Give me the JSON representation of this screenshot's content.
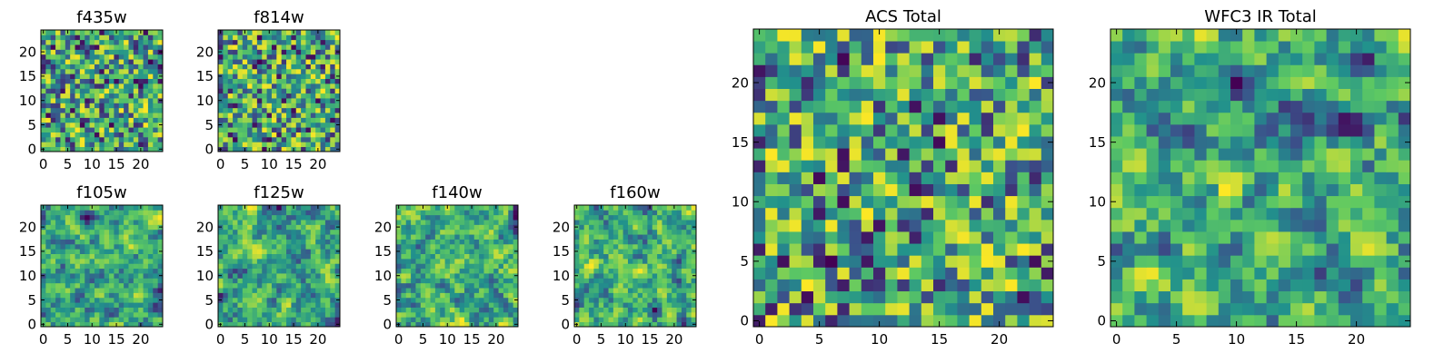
{
  "chart_data": [
    {
      "type": "heatmap",
      "title": "f435w",
      "xticks": [
        "0",
        "5",
        "10",
        "15",
        "20"
      ],
      "yticks": [
        "0",
        "5",
        "10",
        "15",
        "20"
      ],
      "xlim": [
        0,
        25
      ],
      "ylim": [
        0,
        25
      ],
      "grid": false,
      "size": 25,
      "seed": 11,
      "smooth": 0
    },
    {
      "type": "heatmap",
      "title": "f814w",
      "xticks": [
        "0",
        "5",
        "10",
        "15",
        "20"
      ],
      "yticks": [
        "0",
        "5",
        "10",
        "15",
        "20"
      ],
      "xlim": [
        0,
        25
      ],
      "ylim": [
        0,
        25
      ],
      "grid": false,
      "size": 25,
      "seed": 23,
      "smooth": 0
    },
    {
      "type": "heatmap",
      "title": "f105w",
      "xticks": [
        "0",
        "5",
        "10",
        "15",
        "20"
      ],
      "yticks": [
        "0",
        "5",
        "10",
        "15",
        "20"
      ],
      "xlim": [
        0,
        25
      ],
      "ylim": [
        0,
        25
      ],
      "grid": false,
      "size": 25,
      "seed": 37,
      "smooth": 1
    },
    {
      "type": "heatmap",
      "title": "f125w",
      "xticks": [
        "0",
        "5",
        "10",
        "15",
        "20"
      ],
      "yticks": [
        "0",
        "5",
        "10",
        "15",
        "20"
      ],
      "xlim": [
        0,
        25
      ],
      "ylim": [
        0,
        25
      ],
      "grid": false,
      "size": 25,
      "seed": 41,
      "smooth": 1
    },
    {
      "type": "heatmap",
      "title": "f140w",
      "xticks": [
        "0",
        "5",
        "10",
        "15",
        "20"
      ],
      "yticks": [
        "0",
        "5",
        "10",
        "15",
        "20"
      ],
      "xlim": [
        0,
        25
      ],
      "ylim": [
        0,
        25
      ],
      "grid": false,
      "size": 25,
      "seed": 53,
      "smooth": 1
    },
    {
      "type": "heatmap",
      "title": "f160w",
      "xticks": [
        "0",
        "5",
        "10",
        "15",
        "20"
      ],
      "yticks": [
        "0",
        "5",
        "10",
        "15",
        "20"
      ],
      "xlim": [
        0,
        25
      ],
      "ylim": [
        0,
        25
      ],
      "grid": false,
      "size": 25,
      "seed": 67,
      "smooth": 1
    },
    {
      "type": "heatmap",
      "title": "ACS Total",
      "xticks": [
        "0",
        "5",
        "10",
        "15",
        "20"
      ],
      "yticks": [
        "0",
        "5",
        "10",
        "15",
        "20"
      ],
      "xlim": [
        0,
        25
      ],
      "ylim": [
        0,
        25
      ],
      "grid": false,
      "size": 25,
      "seed": 79,
      "smooth": 0
    },
    {
      "type": "heatmap",
      "title": "WFC3 IR Total",
      "xticks": [
        "0",
        "5",
        "10",
        "15",
        "20"
      ],
      "yticks": [
        "0",
        "5",
        "10",
        "15",
        "20"
      ],
      "xlim": [
        0,
        25
      ],
      "ylim": [
        0,
        25
      ],
      "grid": false,
      "size": 25,
      "seed": 97,
      "smooth": 1
    }
  ],
  "colormap": [
    "#440154",
    "#3b528b",
    "#21918c",
    "#5ec962",
    "#fde725"
  ]
}
